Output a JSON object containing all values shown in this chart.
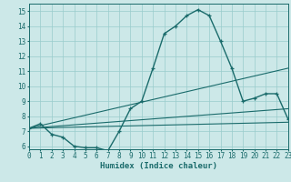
{
  "title": "",
  "xlabel": "Humidex (Indice chaleur)",
  "xlim": [
    0,
    23
  ],
  "ylim": [
    5.8,
    15.5
  ],
  "xticks": [
    0,
    1,
    2,
    3,
    4,
    5,
    6,
    7,
    8,
    9,
    10,
    11,
    12,
    13,
    14,
    15,
    16,
    17,
    18,
    19,
    20,
    21,
    22,
    23
  ],
  "yticks": [
    6,
    7,
    8,
    9,
    10,
    11,
    12,
    13,
    14,
    15
  ],
  "bg_color": "#cce8e8",
  "line_color": "#1a6b6b",
  "grid_color": "#99cccc",
  "curve": {
    "x": [
      0,
      1,
      2,
      3,
      4,
      5,
      6,
      7,
      8,
      9,
      10,
      11,
      12,
      13,
      14,
      15,
      16,
      17,
      18,
      19,
      20,
      21,
      22,
      23
    ],
    "y": [
      7.2,
      7.5,
      6.8,
      6.6,
      6.0,
      5.9,
      5.9,
      5.7,
      7.0,
      8.5,
      9.0,
      11.2,
      13.5,
      14.0,
      14.7,
      15.1,
      14.7,
      13.0,
      11.2,
      9.0,
      9.2,
      9.5,
      9.5,
      7.8
    ]
  },
  "lines": [
    {
      "x": [
        0,
        23
      ],
      "y": [
        7.2,
        7.6
      ]
    },
    {
      "x": [
        0,
        23
      ],
      "y": [
        7.2,
        8.5
      ]
    },
    {
      "x": [
        0,
        23
      ],
      "y": [
        7.2,
        11.2
      ]
    }
  ]
}
